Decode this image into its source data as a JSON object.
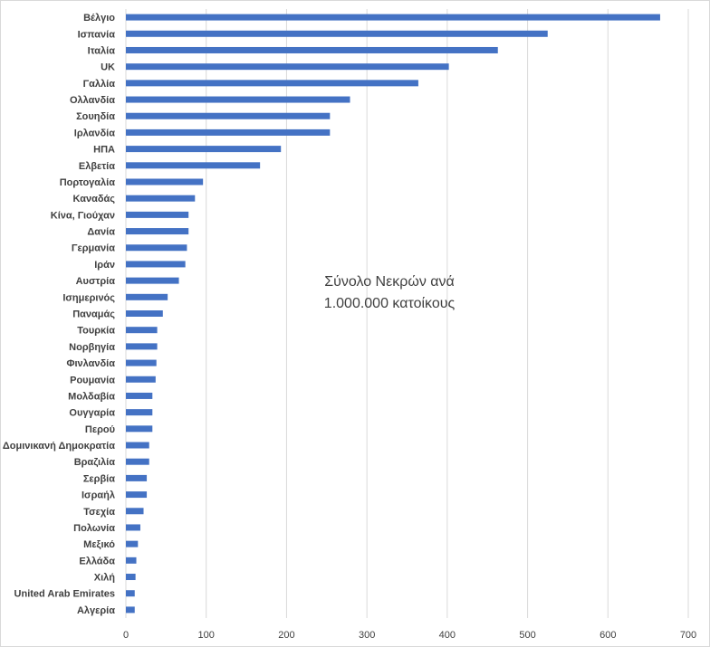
{
  "chart_data": {
    "type": "bar",
    "orientation": "horizontal",
    "categories": [
      "Βέλγιο",
      "Ισπανία",
      "Ιταλία",
      "UK",
      "Γαλλία",
      "Ολλανδία",
      "Σουηδία",
      "Ιρλανδία",
      "ΗΠΑ",
      "Ελβετία",
      "Πορτογαλία",
      "Καναδάς",
      "Κίνα, Γιούχαν",
      "Δανία",
      "Γερμανία",
      "Ιράν",
      "Αυστρία",
      "Ισημερινός",
      "Παναμάς",
      "Τουρκία",
      "Νορβηγία",
      "Φινλανδία",
      "Ρουμανία",
      "Μολδαβία",
      "Ουγγαρία",
      "Περού",
      "Δομινικανή Δημοκρατία",
      "Βραζιλία",
      "Σερβία",
      "Ισραήλ",
      "Τσεχία",
      "Πολωνία",
      "Μεξικό",
      "Ελλάδα",
      "Χιλή",
      "United Arab Emirates",
      "Αλγερία"
    ],
    "values": [
      665,
      525,
      463,
      402,
      364,
      279,
      254,
      254,
      193,
      167,
      96,
      86,
      78,
      78,
      76,
      74,
      66,
      52,
      46,
      39,
      39,
      38,
      37,
      33,
      33,
      33,
      29,
      29,
      26,
      26,
      22,
      18,
      15,
      13,
      12,
      11,
      11
    ],
    "xlim": [
      0,
      700
    ],
    "xticks": [
      0,
      100,
      200,
      300,
      400,
      500,
      600,
      700
    ],
    "grid": "vertical",
    "bar_color": "#4472c4",
    "annotation": [
      "Σύνολο Νεκρών ανά",
      "1.000.000 κατοίκους"
    ]
  }
}
